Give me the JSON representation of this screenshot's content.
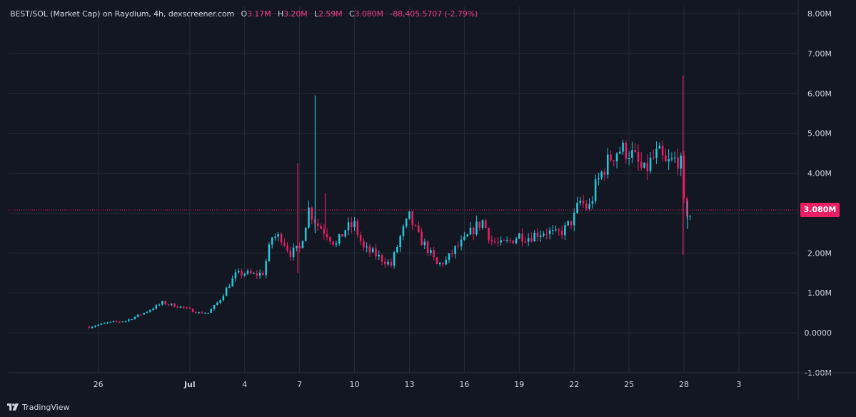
{
  "legend": {
    "symbol": "BEST/SOL (Market Cap) on Raydium, 4h, dexscreener.com",
    "o_label": "O",
    "o_value": "3.17M",
    "h_label": "H",
    "h_value": "3.20M",
    "l_label": "L",
    "l_value": "2.59M",
    "c_label": "C",
    "c_value": "3.080M",
    "change": "-88,405.5707 (-2.79%)"
  },
  "last_price_label": "3.080M",
  "branding": "TradingView",
  "colors": {
    "up": "#26c6da",
    "down": "#e91e63",
    "background": "#131722",
    "grid": "#262b36"
  },
  "chart_data": {
    "type": "candlestick",
    "title": "",
    "timeframe": "4h",
    "xlabel": "",
    "ylabel": "",
    "ylim": [
      -1000000,
      8000000
    ],
    "y_ticks": [
      {
        "value": 8000000,
        "label": "8.00M"
      },
      {
        "value": 7000000,
        "label": "7.00M"
      },
      {
        "value": 6000000,
        "label": "6.00M"
      },
      {
        "value": 5000000,
        "label": "5.00M"
      },
      {
        "value": 4000000,
        "label": "4.00M"
      },
      {
        "value": 3000000,
        "label": "3.00M"
      },
      {
        "value": 2000000,
        "label": "2.00M"
      },
      {
        "value": 1000000,
        "label": "1.00M"
      },
      {
        "value": 0,
        "label": "0.0000"
      },
      {
        "value": -1000000,
        "label": "-1.00M"
      }
    ],
    "x_ticks": [
      {
        "day": 0,
        "label": "26"
      },
      {
        "day": 5,
        "label": "Jul"
      },
      {
        "day": 8,
        "label": "4"
      },
      {
        "day": 11,
        "label": "7"
      },
      {
        "day": 14,
        "label": "10"
      },
      {
        "day": 17,
        "label": "13"
      },
      {
        "day": 20,
        "label": "16"
      },
      {
        "day": 23,
        "label": "19"
      },
      {
        "day": 26,
        "label": "22"
      },
      {
        "day": 29,
        "label": "25"
      },
      {
        "day": 32,
        "label": "28"
      },
      {
        "day": 35,
        "label": "3"
      }
    ],
    "x_range_days": [
      -4.9,
      38.2
    ],
    "last_close": 3080000,
    "keypoints": [
      [
        -0.5,
        0.15
      ],
      [
        0.5,
        0.25
      ],
      [
        1.5,
        0.3
      ],
      [
        2.5,
        0.5
      ],
      [
        3.5,
        0.75
      ],
      [
        4.5,
        0.65
      ],
      [
        5.5,
        0.5
      ],
      [
        6.0,
        0.5
      ],
      [
        6.6,
        0.8
      ],
      [
        7.0,
        1.1
      ],
      [
        7.5,
        1.45
      ],
      [
        8.0,
        1.5
      ],
      [
        8.5,
        1.45
      ],
      [
        9.0,
        1.5
      ],
      [
        9.5,
        2.4
      ],
      [
        10.0,
        2.4
      ],
      [
        10.5,
        2.0
      ],
      [
        11.0,
        2.1
      ],
      [
        11.5,
        3.1
      ],
      [
        12.0,
        2.7
      ],
      [
        12.5,
        2.5
      ],
      [
        13.0,
        2.2
      ],
      [
        13.5,
        2.6
      ],
      [
        14.0,
        2.7
      ],
      [
        14.5,
        2.1
      ],
      [
        15.0,
        2.0
      ],
      [
        15.5,
        1.85
      ],
      [
        16.0,
        1.7
      ],
      [
        16.5,
        2.4
      ],
      [
        17.0,
        2.9
      ],
      [
        17.5,
        2.4
      ],
      [
        18.0,
        2.1
      ],
      [
        18.5,
        1.7
      ],
      [
        19.0,
        1.8
      ],
      [
        19.5,
        2.1
      ],
      [
        20.0,
        2.3
      ],
      [
        20.5,
        2.6
      ],
      [
        21.0,
        2.8
      ],
      [
        21.5,
        2.3
      ],
      [
        22.0,
        2.2
      ],
      [
        22.5,
        2.3
      ],
      [
        23.0,
        2.45
      ],
      [
        23.5,
        2.4
      ],
      [
        24.0,
        2.5
      ],
      [
        24.5,
        2.55
      ],
      [
        25.0,
        2.45
      ],
      [
        25.5,
        2.6
      ],
      [
        26.0,
        2.9
      ],
      [
        26.3,
        3.3
      ],
      [
        26.8,
        3.1
      ],
      [
        27.2,
        3.7
      ],
      [
        27.6,
        4.1
      ],
      [
        28.0,
        4.4
      ],
      [
        28.4,
        4.6
      ],
      [
        29.0,
        4.55
      ],
      [
        29.4,
        4.3
      ],
      [
        29.8,
        4.0
      ],
      [
        30.2,
        4.3
      ],
      [
        30.6,
        4.5
      ],
      [
        31.0,
        4.2
      ],
      [
        31.4,
        4.3
      ],
      [
        31.8,
        4.4
      ],
      [
        32.0,
        3.2
      ],
      [
        32.3,
        2.9
      ],
      [
        32.4,
        3.08
      ]
    ],
    "spikes": [
      {
        "day": 10.9,
        "high": 4.25,
        "low": 1.5
      },
      {
        "day": 11.85,
        "high": 5.95,
        "low": 2.5
      },
      {
        "day": 12.4,
        "high": 3.5,
        "low": 2.6
      },
      {
        "day": 31.95,
        "high": 6.45,
        "low": 1.95
      },
      {
        "day": 32.2,
        "high": 3.3,
        "low": 2.6
      }
    ]
  }
}
